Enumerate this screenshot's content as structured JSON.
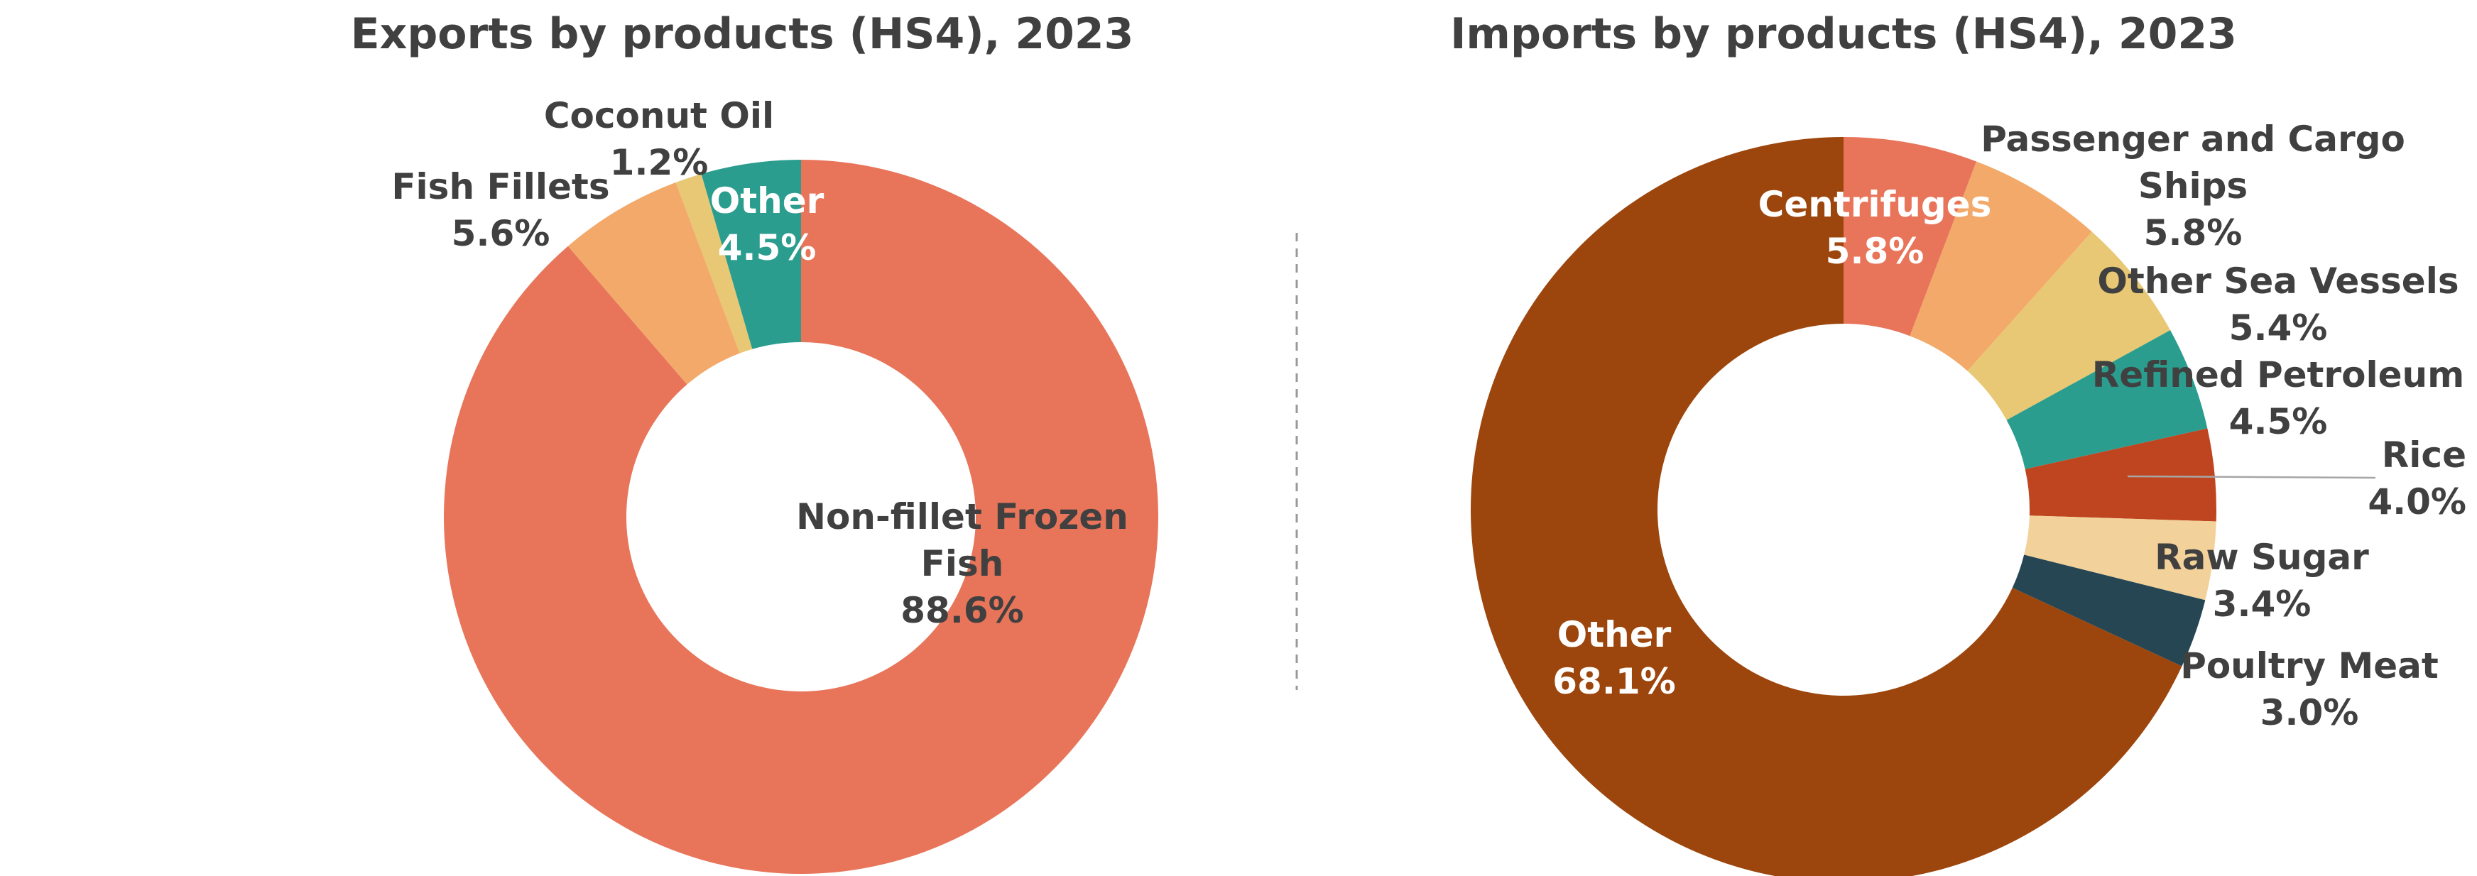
{
  "chart_data": [
    {
      "type": "pie",
      "donut": true,
      "title": "Exports by products (HS4), 2023",
      "slices": [
        {
          "name": "Non-fillet Frozen Fish",
          "value": 88.6,
          "label_lines": [
            "Non-fillet Frozen",
            "Fish"
          ],
          "value_text": "88.6%",
          "color": "#E8755A"
        },
        {
          "name": "Fish Fillets",
          "value": 5.6,
          "label_lines": [
            "Fish Fillets"
          ],
          "value_text": "5.6%",
          "color": "#F2A96A"
        },
        {
          "name": "Coconut Oil",
          "value": 1.2,
          "label_lines": [
            "Coconut Oil"
          ],
          "value_text": "1.2%",
          "color": "#E8C874"
        },
        {
          "name": "Other",
          "value": 4.5,
          "label_lines": [
            "Other"
          ],
          "value_text": "4.5%",
          "color": "#2A9D8F"
        }
      ]
    },
    {
      "type": "pie",
      "donut": true,
      "title": "Imports by products (HS4), 2023",
      "slices": [
        {
          "name": "Centrifuges",
          "value": 5.8,
          "label_lines": [
            "Centrifuges"
          ],
          "value_text": "5.8%",
          "color": "#E8755A"
        },
        {
          "name": "Passenger and Cargo Ships",
          "value": 5.8,
          "label_lines": [
            "Passenger and Cargo",
            "Ships"
          ],
          "value_text": "5.8%",
          "color": "#F2A96A"
        },
        {
          "name": "Other Sea Vessels",
          "value": 5.4,
          "label_lines": [
            "Other Sea Vessels"
          ],
          "value_text": "5.4%",
          "color": "#E8C874"
        },
        {
          "name": "Refined Petroleum",
          "value": 4.5,
          "label_lines": [
            "Refined Petroleum"
          ],
          "value_text": "4.5%",
          "color": "#2A9D8F"
        },
        {
          "name": "Rice",
          "value": 4.0,
          "label_lines": [
            "Rice"
          ],
          "value_text": "4.0%",
          "color": "#BF4520"
        },
        {
          "name": "Raw Sugar",
          "value": 3.4,
          "label_lines": [
            "Raw Sugar"
          ],
          "value_text": "3.4%",
          "color": "#F2D29A"
        },
        {
          "name": "Poultry Meat",
          "value": 3.0,
          "label_lines": [
            "Poultry Meat"
          ],
          "value_text": "3.0%",
          "color": "#264653"
        },
        {
          "name": "Other",
          "value": 68.1,
          "label_lines": [
            "Other"
          ],
          "value_text": "68.1%",
          "color": "#9C460D"
        }
      ]
    }
  ]
}
